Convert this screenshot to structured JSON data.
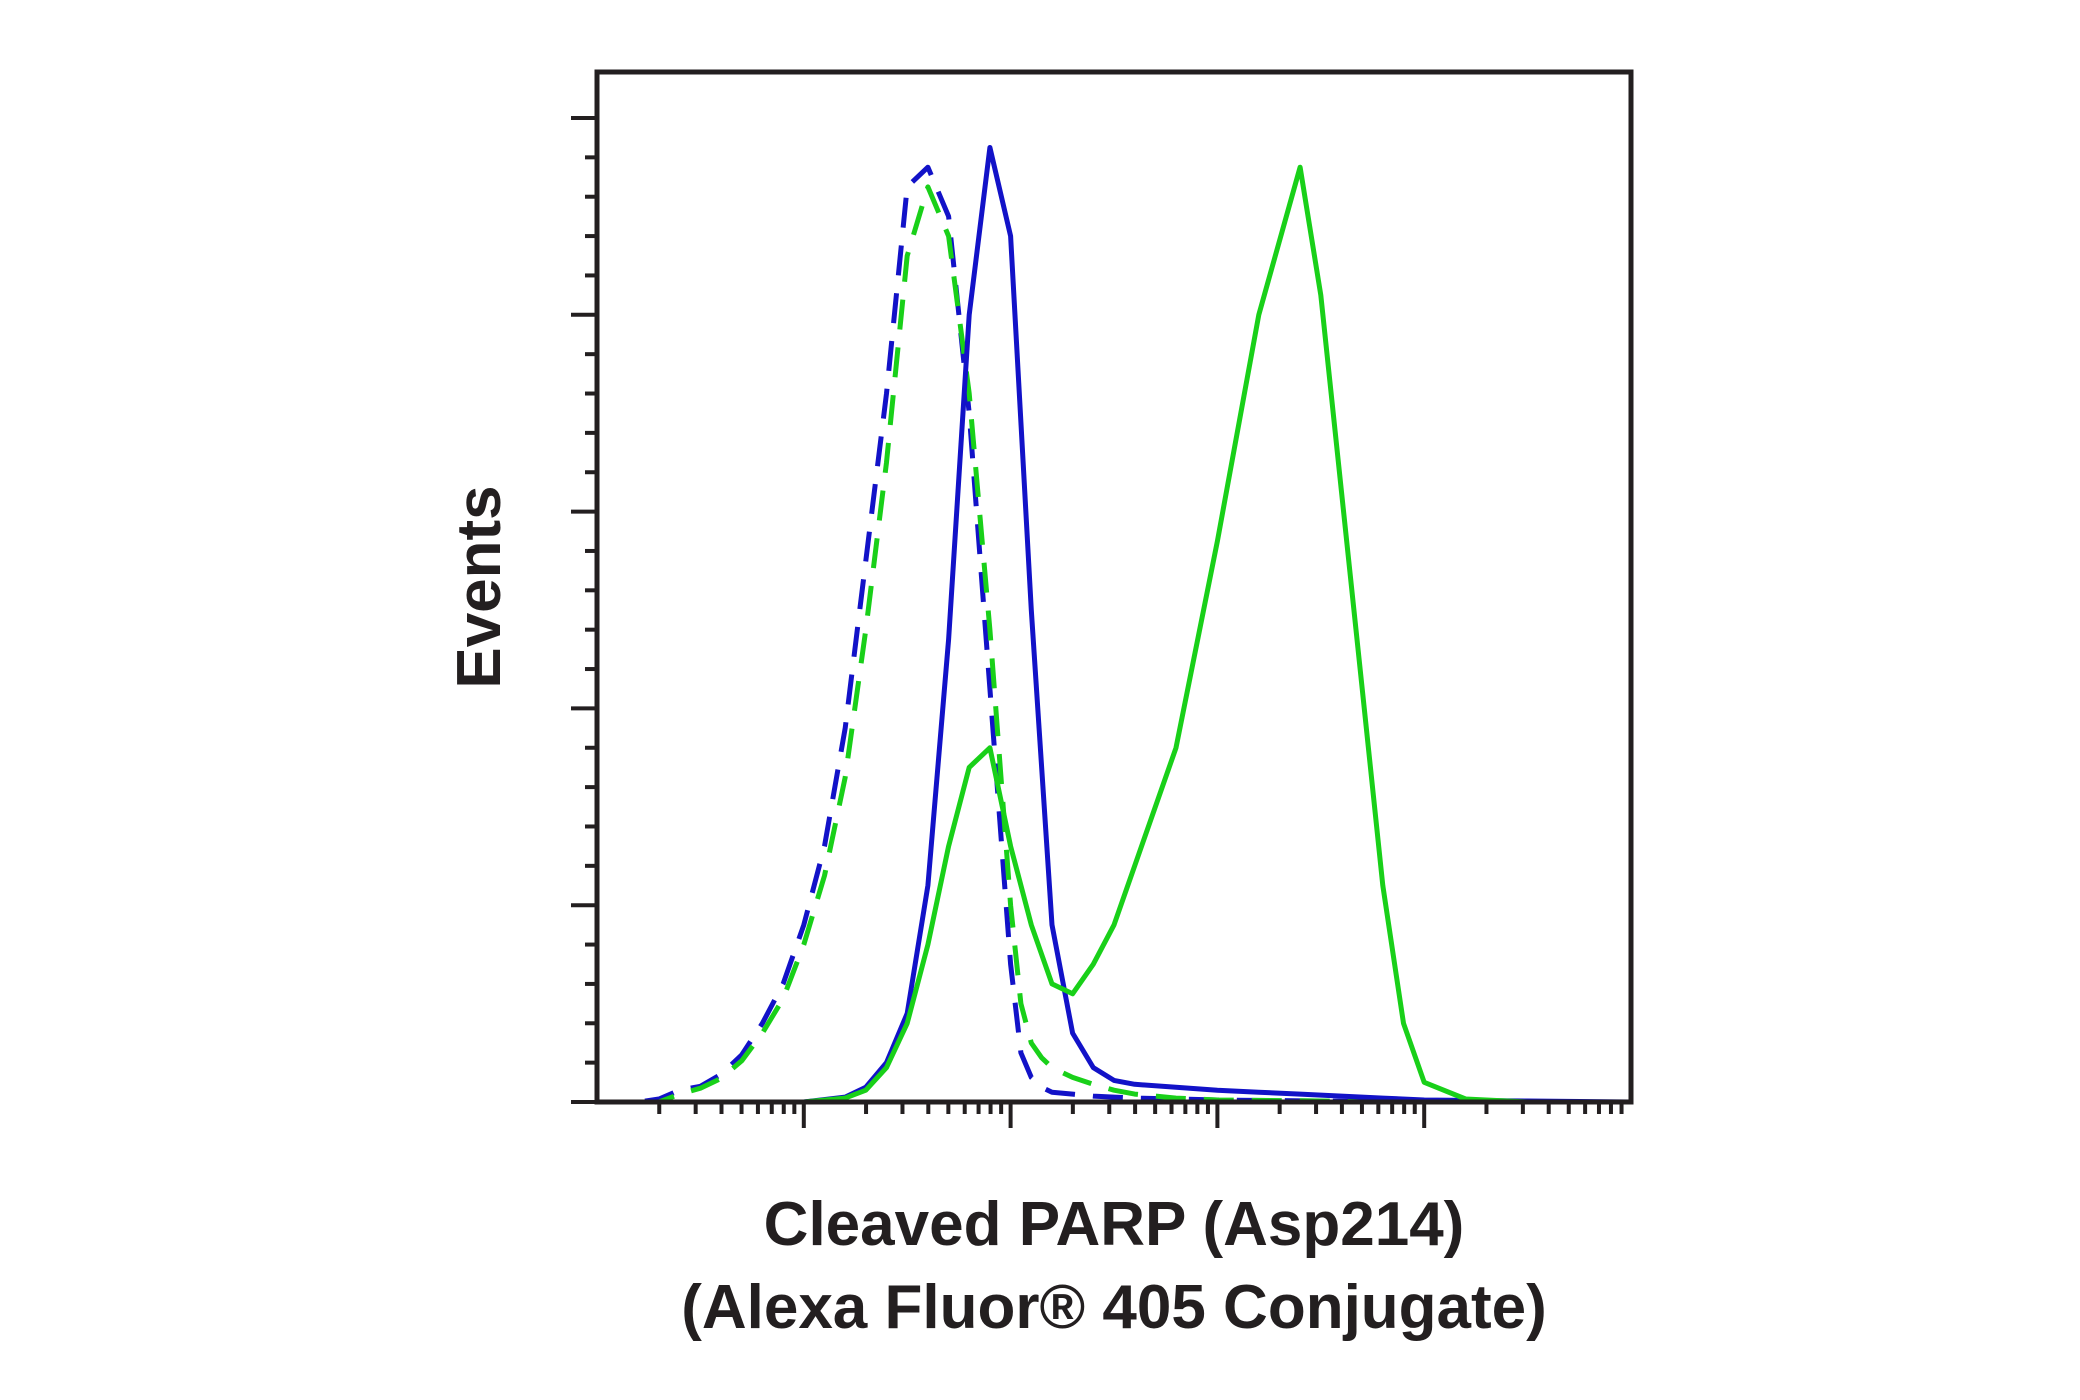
{
  "chart_data": {
    "type": "line",
    "title": "",
    "xlabel_line1": "Cleaved PARP (Asp214)",
    "xlabel_line2": "(Alexa Fluor® 405 Conjugate)",
    "ylabel": "Events",
    "x_scale": "log",
    "xlim": [
      0,
      5
    ],
    "ylim": [
      0,
      100
    ],
    "tick_labels_shown": false,
    "grid": false,
    "legend": "none",
    "x_major_ticks": [
      1,
      2,
      3,
      4
    ],
    "y_major_ticks": [
      0,
      20,
      40,
      60,
      80,
      100
    ],
    "series": [
      {
        "color": "#1212c8",
        "style": "dashed",
        "x": [
          0,
          0.1,
          0.2,
          0.3,
          0.4,
          0.5,
          0.6,
          0.7,
          0.8,
          0.9,
          1.0,
          1.1,
          1.2,
          1.3,
          1.4,
          1.5,
          1.6,
          1.7,
          1.8,
          1.9,
          2.0,
          2.05,
          2.1,
          2.15,
          2.2,
          2.3,
          2.4,
          2.5,
          2.6,
          2.8,
          3.0,
          3.5,
          4.0,
          4.5,
          5.0
        ],
        "y": [
          0,
          0,
          0,
          0.3,
          1.2,
          1.6,
          2.8,
          4.8,
          8,
          12,
          18,
          26,
          38,
          55,
          72,
          93,
          95,
          90,
          70,
          42,
          14,
          5,
          2.5,
          1.5,
          1,
          0.8,
          0.6,
          0.5,
          0.4,
          0.3,
          0.2,
          0.1,
          0,
          0,
          0
        ]
      },
      {
        "color": "#19d019",
        "style": "dashed",
        "x": [
          0,
          0.1,
          0.2,
          0.3,
          0.4,
          0.5,
          0.6,
          0.7,
          0.8,
          0.9,
          1.0,
          1.1,
          1.2,
          1.3,
          1.4,
          1.5,
          1.6,
          1.7,
          1.8,
          1.9,
          2.0,
          2.05,
          2.1,
          2.15,
          2.2,
          2.3,
          2.4,
          2.5,
          2.6,
          2.8,
          3.0,
          3.5,
          4.0,
          4.5,
          5.0
        ],
        "y": [
          0,
          0,
          0,
          0,
          0.8,
          1.4,
          2.4,
          4.2,
          7,
          10.5,
          16,
          23,
          33,
          48,
          65,
          86,
          93,
          88,
          72,
          48,
          20,
          10,
          6,
          4.5,
          3.5,
          2.5,
          1.8,
          1.2,
          0.8,
          0.4,
          0.2,
          0.1,
          0,
          0,
          0
        ]
      },
      {
        "color": "#1212c8",
        "style": "solid",
        "x": [
          0,
          0.1,
          0.2,
          0.5,
          1.0,
          1.2,
          1.3,
          1.4,
          1.5,
          1.6,
          1.7,
          1.8,
          1.9,
          2.0,
          2.1,
          2.2,
          2.3,
          2.4,
          2.5,
          2.6,
          2.8,
          3.0,
          3.2,
          3.4,
          3.6,
          3.8,
          4.0,
          4.5,
          5.0
        ],
        "y": [
          0,
          0,
          0,
          0,
          0,
          0.5,
          1.5,
          4,
          9,
          22,
          47,
          80,
          97,
          88,
          50,
          18,
          7,
          3.5,
          2.2,
          1.8,
          1.5,
          1.2,
          1,
          0.8,
          0.6,
          0.4,
          0.2,
          0.1,
          0
        ]
      },
      {
        "color": "#19d019",
        "style": "solid",
        "x": [
          0,
          0.5,
          1.0,
          1.2,
          1.3,
          1.4,
          1.5,
          1.6,
          1.7,
          1.8,
          1.9,
          2.0,
          2.1,
          2.2,
          2.3,
          2.4,
          2.5,
          2.6,
          2.8,
          3.0,
          3.2,
          3.4,
          3.5,
          3.6,
          3.7,
          3.8,
          3.9,
          4.0,
          4.2,
          4.5,
          5.0
        ],
        "y": [
          0,
          0,
          0,
          0.4,
          1.2,
          3.5,
          8,
          16,
          26,
          34,
          36,
          26,
          18,
          12,
          11,
          14,
          18,
          24,
          36,
          57,
          80,
          95,
          82,
          62,
          42,
          22,
          8,
          2,
          0.3,
          0,
          0
        ]
      }
    ]
  }
}
